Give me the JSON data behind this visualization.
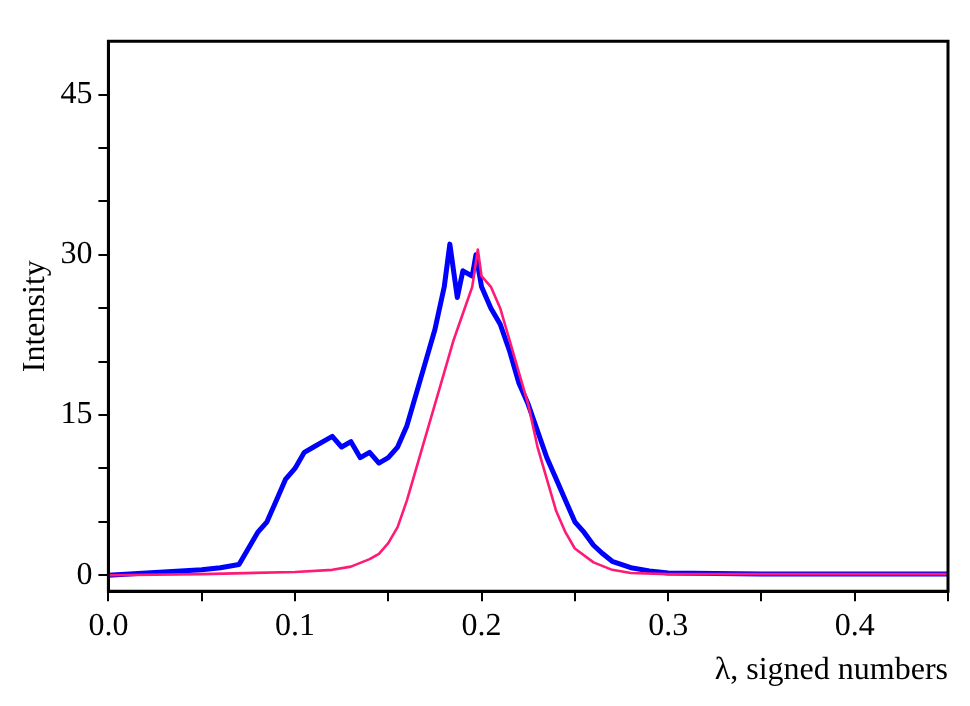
{
  "chart_data": {
    "type": "line",
    "xlabel": "λ, signed numbers",
    "ylabel": "Intensity",
    "xlim": [
      0,
      0.45
    ],
    "ylim": [
      -1.5,
      50
    ],
    "xticks": [
      {
        "value": 0,
        "label": "0.0"
      },
      {
        "value": 0.05,
        "label": null
      },
      {
        "value": 0.1,
        "label": "0.1"
      },
      {
        "value": 0.15,
        "label": null
      },
      {
        "value": 0.2,
        "label": "0.2"
      },
      {
        "value": 0.25,
        "label": null
      },
      {
        "value": 0.3,
        "label": "0.3"
      },
      {
        "value": 0.35,
        "label": null
      },
      {
        "value": 0.4,
        "label": "0.4"
      },
      {
        "value": 0.45,
        "label": null
      }
    ],
    "yticks": [
      0,
      {
        "value": 5,
        "label": null
      },
      {
        "value": 10,
        "label": null
      },
      15,
      {
        "value": 20,
        "label": null
      },
      {
        "value": 25,
        "label": null
      },
      30,
      {
        "value": 35,
        "label": null
      },
      {
        "value": 40,
        "label": null
      },
      45
    ],
    "grid": false,
    "legend": false,
    "marker": "none",
    "line_style": "solid",
    "series": [
      {
        "color": "#0000ff",
        "x": [
          0,
          0.05,
          0.06,
          0.07,
          0.075,
          0.08,
          0.085,
          0.09,
          0.095,
          0.1,
          0.105,
          0.11,
          0.115,
          0.12,
          0.125,
          0.13,
          0.135,
          0.14,
          0.145,
          0.15,
          0.155,
          0.16,
          0.165,
          0.17,
          0.175,
          0.18,
          0.183,
          0.187,
          0.19,
          0.195,
          0.197,
          0.2,
          0.205,
          0.21,
          0.215,
          0.22,
          0.225,
          0.23,
          0.235,
          0.24,
          0.245,
          0.25,
          0.255,
          0.26,
          0.265,
          0.27,
          0.28,
          0.29,
          0.3,
          0.35,
          0.45
        ],
        "values": [
          0,
          0.5,
          0.7,
          1,
          2.5,
          4,
          5,
          7,
          9,
          10,
          11.5,
          12,
          12.5,
          13,
          12,
          12.5,
          11,
          11.5,
          10.5,
          11,
          12,
          14,
          17,
          20,
          23,
          27,
          31,
          26,
          28.5,
          28,
          30,
          27,
          25,
          23.5,
          21,
          18,
          16,
          13.5,
          11,
          9,
          7,
          5,
          4,
          2.8,
          2,
          1.3,
          0.7,
          0.4,
          0.2,
          0.1,
          0.1
        ]
      },
      {
        "color": "#ff1a75",
        "x": [
          0,
          0.05,
          0.1,
          0.12,
          0.13,
          0.14,
          0.145,
          0.15,
          0.155,
          0.16,
          0.165,
          0.17,
          0.175,
          0.18,
          0.185,
          0.19,
          0.195,
          0.198,
          0.2,
          0.205,
          0.21,
          0.215,
          0.22,
          0.225,
          0.23,
          0.235,
          0.24,
          0.245,
          0.25,
          0.26,
          0.27,
          0.28,
          0.3,
          0.45
        ],
        "values": [
          0,
          0.1,
          0.3,
          0.5,
          0.8,
          1.5,
          2,
          3,
          4.5,
          7,
          10,
          13,
          16,
          19,
          22,
          24.5,
          27,
          30.5,
          28,
          27,
          25,
          22,
          19,
          16,
          12,
          9,
          6,
          4,
          2.5,
          1.2,
          0.5,
          0.2,
          0.1,
          0.1
        ]
      }
    ]
  }
}
